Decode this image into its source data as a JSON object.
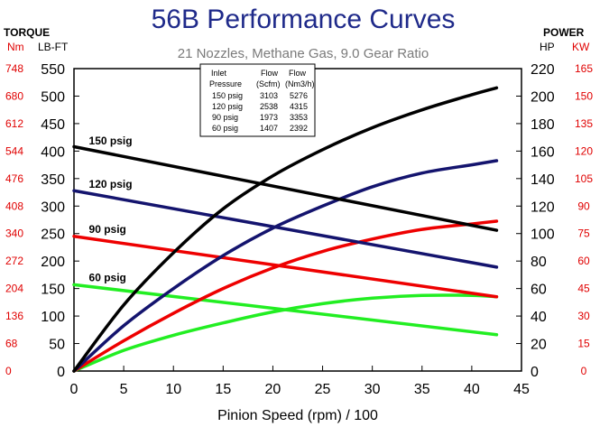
{
  "chart_data": {
    "type": "line",
    "title": "56B Performance Curves",
    "subtitle": "21 Nozzles, Methane Gas, 9.0 Gear Ratio",
    "xlabel": "Pinion Speed (rpm) / 100",
    "xlim": [
      0,
      45
    ],
    "x_ticks": [
      "0",
      "5",
      "10",
      "15",
      "20",
      "25",
      "30",
      "35",
      "40",
      "45"
    ],
    "left_axis": {
      "header": "TORQUE",
      "units_outer": "Nm",
      "units_inner": "LB-FT",
      "ylim": [
        0,
        550
      ],
      "ticks_lbft": [
        "0",
        "50",
        "100",
        "150",
        "200",
        "250",
        "300",
        "350",
        "400",
        "450",
        "500",
        "550"
      ],
      "ticks_nm": [
        "0",
        "68",
        "136",
        "204",
        "272",
        "340",
        "408",
        "476",
        "544",
        "612",
        "680",
        "748"
      ]
    },
    "right_axis": {
      "header": "POWER",
      "units_inner": "HP",
      "units_outer": "KW",
      "ylim": [
        0,
        220
      ],
      "ticks_hp": [
        "0",
        "20",
        "40",
        "60",
        "80",
        "100",
        "120",
        "140",
        "160",
        "180",
        "200",
        "220"
      ],
      "ticks_kw": [
        "0",
        "15",
        "30",
        "45",
        "60",
        "75",
        "90",
        "105",
        "120",
        "135",
        "150",
        "165"
      ]
    },
    "grid": false,
    "series": [
      {
        "name": "150 psig",
        "color": "#000000",
        "torque": {
          "x": [
            0,
            42.5
          ],
          "y": [
            408,
            256
          ]
        },
        "power": {
          "x": [
            0,
            5,
            10,
            15,
            20,
            25,
            30,
            35,
            40,
            42.5
          ],
          "y": [
            0,
            48,
            86,
            118,
            142,
            161,
            177,
            190,
            201,
            206
          ]
        }
      },
      {
        "name": "120 psig",
        "color": "#14146e",
        "torque": {
          "x": [
            0,
            42.5
          ],
          "y": [
            328,
            189
          ]
        },
        "power": {
          "x": [
            0,
            5,
            10,
            15,
            20,
            25,
            30,
            35,
            40,
            42.5
          ],
          "y": [
            0,
            33,
            60,
            84,
            104,
            120,
            134,
            144,
            150,
            153
          ]
        }
      },
      {
        "name": "90 psig",
        "color": "#ee0000",
        "torque": {
          "x": [
            0,
            42.5
          ],
          "y": [
            245,
            135
          ]
        },
        "power": {
          "x": [
            0,
            5,
            10,
            15,
            20,
            25,
            30,
            35,
            40,
            42.5
          ],
          "y": [
            0,
            22,
            42,
            60,
            75,
            87,
            96,
            103,
            107,
            109
          ]
        }
      },
      {
        "name": "60 psig",
        "color": "#22ee22",
        "torque": {
          "x": [
            0,
            42.5
          ],
          "y": [
            157,
            66
          ]
        },
        "power": {
          "x": [
            0,
            5,
            10,
            15,
            20,
            25,
            30,
            35,
            40,
            42.5
          ],
          "y": [
            0,
            15,
            26,
            35,
            43,
            49,
            53,
            55,
            55,
            54
          ]
        }
      }
    ],
    "table": {
      "headers": [
        [
          "Inlet",
          "Pressure"
        ],
        [
          "Flow",
          "(Scfm)"
        ],
        [
          "Flow",
          "(Nm3/h)"
        ]
      ],
      "rows": [
        [
          "150  psig",
          "3103",
          "5276"
        ],
        [
          "120  psig",
          "2538",
          "4315"
        ],
        [
          "90  psig",
          "1973",
          "3353"
        ],
        [
          "60  psig",
          "1407",
          "2392"
        ]
      ]
    }
  }
}
